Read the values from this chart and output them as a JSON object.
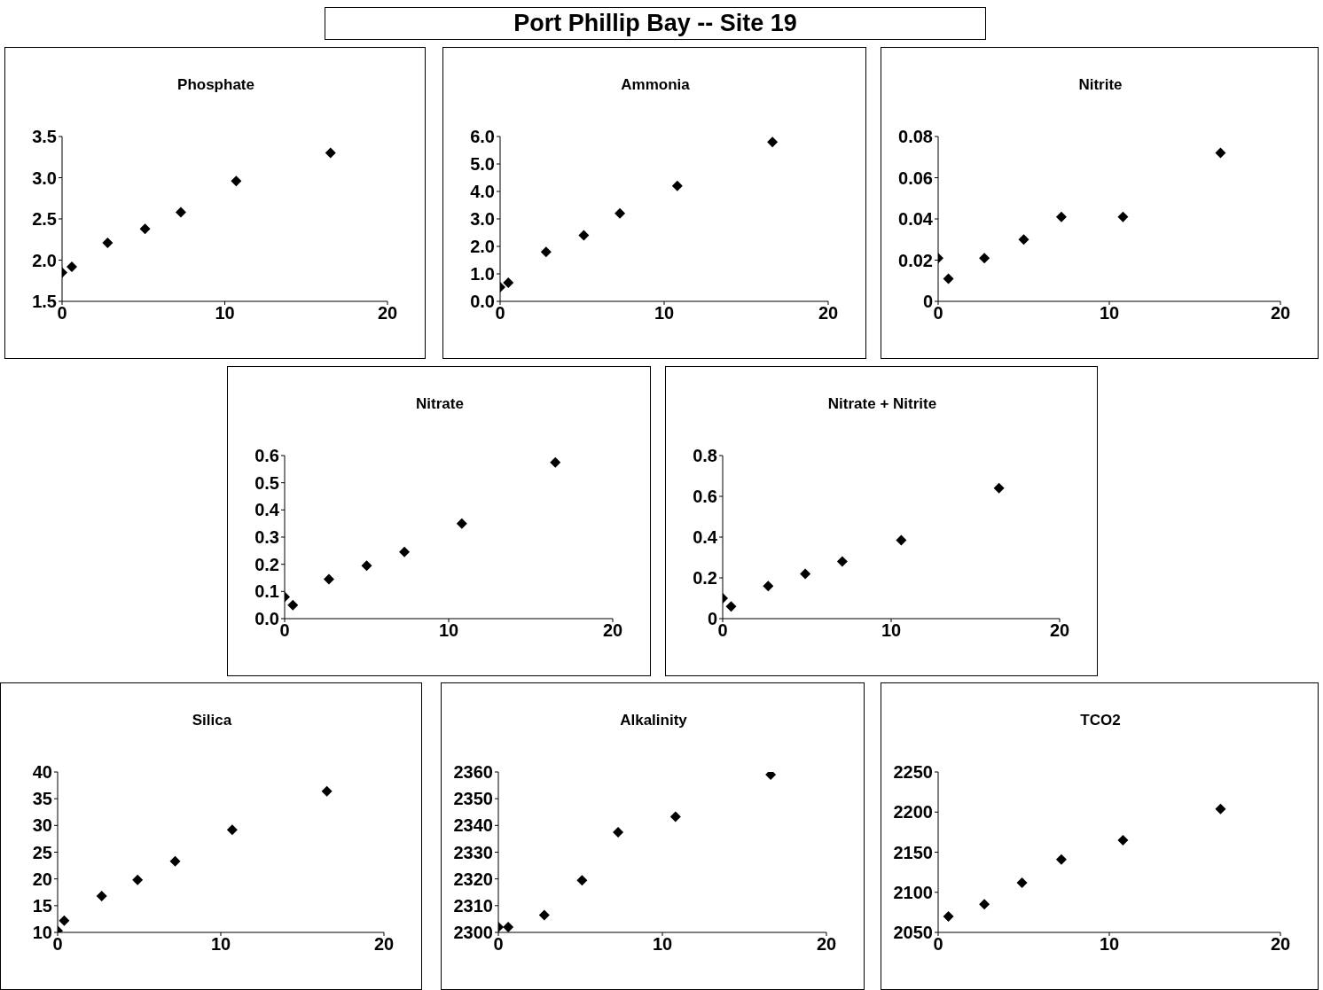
{
  "chart_data": [
    {
      "type": "scatter",
      "title": "Phosphate",
      "annotations": [
        "Port Phillip Bay -- Site 19"
      ],
      "marker": "diamond",
      "x": [
        0,
        0.6,
        2.8,
        5.1,
        7.3,
        10.7,
        16.5
      ],
      "series": [
        {
          "color": "#000000",
          "values": [
            1.85,
            1.92,
            2.21,
            2.38,
            2.58,
            2.96,
            3.3
          ]
        }
      ],
      "xlim": [
        0,
        20
      ],
      "xticks": [
        0,
        10,
        20
      ],
      "ylim": [
        1.5,
        3.5
      ],
      "yticks": [
        1.5,
        {
          "value": 2,
          "label": "2.0"
        },
        2.5,
        {
          "value": 3,
          "label": "3.0"
        },
        3.5
      ]
    },
    {
      "type": "scatter",
      "title": "Ammonia",
      "marker": "diamond",
      "x": [
        0,
        0.5,
        2.8,
        5.1,
        7.3,
        10.8,
        16.6
      ],
      "series": [
        {
          "color": "#000000",
          "values": [
            0.52,
            0.68,
            1.8,
            2.4,
            3.2,
            4.2,
            5.8
          ]
        }
      ],
      "xlim": [
        0,
        20
      ],
      "xticks": [
        0,
        10,
        20
      ],
      "ylim": [
        0,
        6
      ],
      "yticks": [
        {
          "value": 0,
          "label": "0.0"
        },
        {
          "value": 1,
          "label": "1.0"
        },
        {
          "value": 2,
          "label": "2.0"
        },
        {
          "value": 3,
          "label": "3.0"
        },
        {
          "value": 4,
          "label": "4.0"
        },
        {
          "value": 5,
          "label": "5.0"
        },
        {
          "value": 6,
          "label": "6.0"
        }
      ]
    },
    {
      "type": "scatter",
      "title": "Nitrite",
      "marker": "diamond",
      "x": [
        0,
        0.6,
        2.7,
        5.0,
        7.2,
        10.8,
        16.5
      ],
      "series": [
        {
          "color": "#000000",
          "values": [
            0.021,
            0.011,
            0.021,
            0.03,
            0.041,
            0.041,
            0.072
          ]
        }
      ],
      "xlim": [
        0,
        20
      ],
      "xticks": [
        0,
        10,
        20
      ],
      "ylim": [
        0,
        0.08
      ],
      "yticks": [
        0,
        0.02,
        0.04,
        0.06,
        0.08
      ]
    },
    {
      "type": "scatter",
      "title": "Nitrate",
      "marker": "diamond",
      "x": [
        0,
        0.5,
        2.7,
        5.0,
        7.3,
        10.8,
        16.5
      ],
      "series": [
        {
          "color": "#000000",
          "values": [
            0.08,
            0.05,
            0.145,
            0.195,
            0.245,
            0.35,
            0.575
          ]
        }
      ],
      "xlim": [
        0,
        20
      ],
      "xticks": [
        0,
        10,
        20
      ],
      "ylim": [
        0,
        0.6
      ],
      "yticks": [
        {
          "value": 0,
          "label": "0.0"
        },
        0.1,
        0.2,
        0.3,
        0.4,
        0.5,
        0.6
      ]
    },
    {
      "type": "scatter",
      "title": "Nitrate + Nitrite",
      "marker": "diamond",
      "x": [
        0,
        0.5,
        2.7,
        4.9,
        7.1,
        10.6,
        16.4
      ],
      "series": [
        {
          "color": "#000000",
          "values": [
            0.1,
            0.06,
            0.16,
            0.22,
            0.28,
            0.385,
            0.64
          ]
        }
      ],
      "xlim": [
        0,
        20
      ],
      "xticks": [
        0,
        10,
        20
      ],
      "ylim": [
        0,
        0.8
      ],
      "yticks": [
        0,
        0.2,
        0.4,
        0.6,
        0.8
      ]
    },
    {
      "type": "scatter",
      "title": "Silica",
      "marker": "diamond",
      "x": [
        0,
        0.4,
        2.7,
        4.9,
        7.2,
        10.7,
        16.5
      ],
      "series": [
        {
          "color": "#000000",
          "values": [
            10.3,
            12.2,
            16.8,
            19.8,
            23.3,
            29.2,
            36.4
          ]
        }
      ],
      "xlim": [
        0,
        20
      ],
      "xticks": [
        0,
        10,
        20
      ],
      "ylim": [
        10,
        40
      ],
      "yticks": [
        10,
        15,
        20,
        25,
        30,
        35,
        40
      ]
    },
    {
      "type": "scatter",
      "title": "Alkalinity",
      "marker": "diamond",
      "x": [
        0,
        0.6,
        2.8,
        5.1,
        7.3,
        10.8,
        16.6
      ],
      "series": [
        {
          "color": "#000000",
          "values": [
            2302,
            2302,
            2306.5,
            2319.5,
            2337.5,
            2343.3,
            2359
          ]
        }
      ],
      "xlim": [
        0,
        20
      ],
      "xticks": [
        0,
        10,
        20
      ],
      "ylim": [
        2300,
        2360
      ],
      "yticks": [
        2300,
        2310,
        2320,
        2330,
        2340,
        2350,
        2360
      ]
    },
    {
      "type": "scatter",
      "title": "TCO2",
      "marker": "diamond",
      "x": [
        0.6,
        2.7,
        4.9,
        7.2,
        10.8,
        16.5
      ],
      "series": [
        {
          "color": "#000000",
          "values": [
            2070,
            2085,
            2112,
            2141,
            2165,
            2204
          ]
        }
      ],
      "xlim": [
        0,
        20
      ],
      "xticks": [
        0,
        10,
        20
      ],
      "ylim": [
        2050,
        2250
      ],
      "yticks": [
        2050,
        2100,
        2150,
        2200,
        2250
      ]
    }
  ]
}
